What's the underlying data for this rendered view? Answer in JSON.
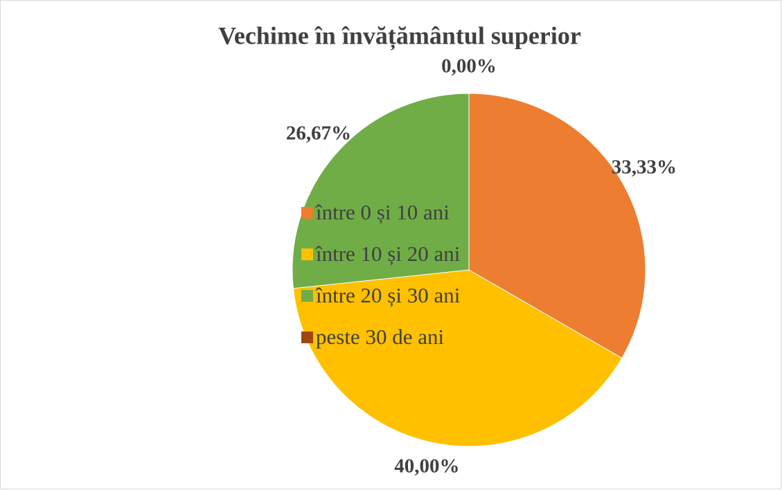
{
  "chart_data": {
    "type": "pie",
    "title": "Vechime în învățământul superior",
    "categories": [
      "între 0 și 10 ani",
      "între 10 și 20 ani",
      "între 20 și 30 ani",
      "peste 30 de ani"
    ],
    "values": [
      33.33,
      40,
      26.67,
      0
    ],
    "value_labels": [
      "33,33%",
      "40,00%",
      "26,67%",
      "0,00%"
    ],
    "colors": [
      "#ed7d31",
      "#ffc000",
      "#70ad47",
      "#9e480e"
    ],
    "legend": "left"
  }
}
